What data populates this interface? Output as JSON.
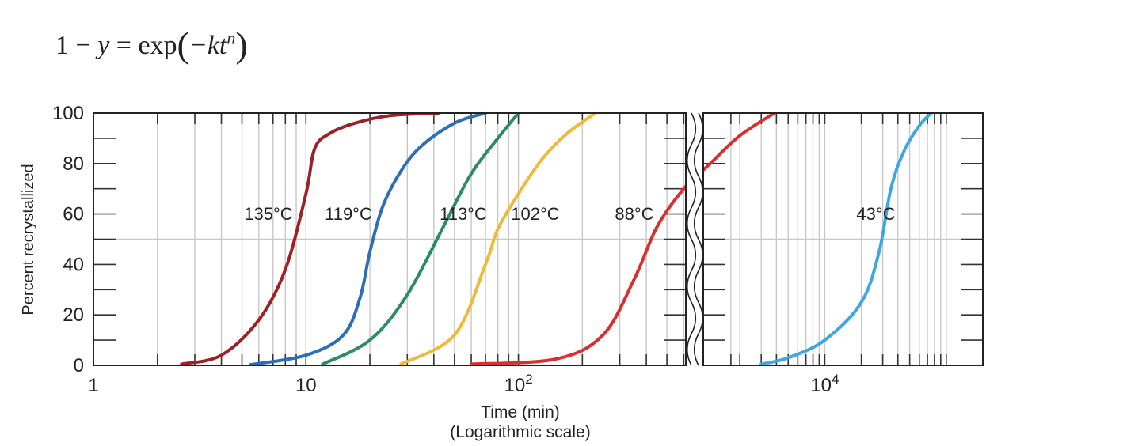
{
  "formula": {
    "lhs": "1 − ",
    "y": "y",
    "eq": " = exp",
    "inner": "−kt",
    "exp": "n"
  },
  "chart_data": {
    "type": "line",
    "xlabel": "Time (min)",
    "xlabel_note": "(Logarithmic scale)",
    "ylabel": "Percent recrystallized",
    "xscale": "log",
    "xlim": [
      1,
      200000
    ],
    "axis_break": [
      2000,
      1000
    ],
    "ylim": [
      0,
      100
    ],
    "grid": true,
    "y_ticks": [
      0,
      20,
      40,
      60,
      80,
      100
    ],
    "x_tick_labels": [
      {
        "value": 1,
        "label": "1"
      },
      {
        "value": 10,
        "label": "10"
      },
      {
        "value": 100,
        "label": "10",
        "sup": "2"
      },
      {
        "value": 10000,
        "label": "10",
        "sup": "4"
      }
    ],
    "series": [
      {
        "name": "135°C",
        "color": "#9b2226",
        "x": [
          2.6,
          4,
          6,
          8,
          10,
          11,
          13,
          17,
          25,
          42
        ],
        "y": [
          0.5,
          4,
          18,
          38,
          68,
          86,
          92,
          96,
          99,
          100
        ]
      },
      {
        "name": "119°C",
        "color": "#2d6fb5",
        "x": [
          5.5,
          10,
          15,
          18,
          20,
          23,
          28,
          35,
          50,
          70
        ],
        "y": [
          0.3,
          4,
          12,
          27,
          45,
          63,
          77,
          87,
          96,
          100
        ]
      },
      {
        "name": "113°C",
        "color": "#2e8b66",
        "x": [
          12,
          20,
          30,
          45,
          60,
          80,
          100
        ],
        "y": [
          0.5,
          10,
          28,
          56,
          76,
          90,
          100
        ]
      },
      {
        "name": "102°C",
        "color": "#f0b93a",
        "x": [
          28,
          50,
          70,
          80,
          100,
          130,
          170,
          230
        ],
        "y": [
          0.5,
          12,
          40,
          54,
          68,
          82,
          92,
          100
        ]
      },
      {
        "name": "88°C",
        "color": "#d8302f",
        "x": [
          60,
          150,
          250,
          350,
          450,
          600,
          800,
          1100,
          1600
        ],
        "y": [
          0.5,
          2.5,
          12,
          34,
          55,
          70,
          80,
          91,
          100
        ]
      },
      {
        "name": "43°C",
        "color": "#3fa7e0",
        "x": [
          3000,
          5000,
          10000,
          20000,
          28000,
          35000,
          45000,
          60000,
          75000
        ],
        "y": [
          0.5,
          3,
          10,
          25,
          45,
          70,
          85,
          95,
          100
        ]
      }
    ]
  }
}
